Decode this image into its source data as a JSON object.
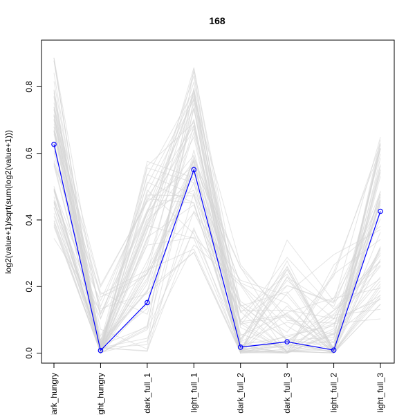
{
  "chart_data": {
    "type": "line",
    "title": "168",
    "xlabel": "",
    "ylabel": "log2(value+1)/sqrt(sum(log2(value+1)))",
    "categories": [
      "dark_hungry",
      "light_hungry",
      "dark_full_1",
      "light_full_1",
      "dark_full_2",
      "dark_full_3",
      "light_full_2",
      "light_full_3"
    ],
    "ylim": [
      -0.03,
      0.94
    ],
    "yticks": [
      0.0,
      0.2,
      0.4,
      0.6,
      0.8
    ],
    "ytick_labels": [
      "0.0",
      "0.2",
      "0.4",
      "0.6",
      "0.8"
    ],
    "grid": false,
    "highlight_series": {
      "values": [
        0.627,
        0.008,
        0.152,
        0.551,
        0.018,
        0.034,
        0.009,
        0.426
      ],
      "color": "#0000ff",
      "marker": "open-circle"
    },
    "background_profiles": {
      "color": "#d3d3d3",
      "description_count": 60,
      "envelope_min": [
        0.33,
        0.0,
        0.0,
        0.3,
        0.0,
        0.0,
        0.0,
        0.1
      ],
      "envelope_max": [
        0.9,
        0.21,
        0.58,
        0.86,
        0.28,
        0.36,
        0.3,
        0.65
      ]
    }
  }
}
